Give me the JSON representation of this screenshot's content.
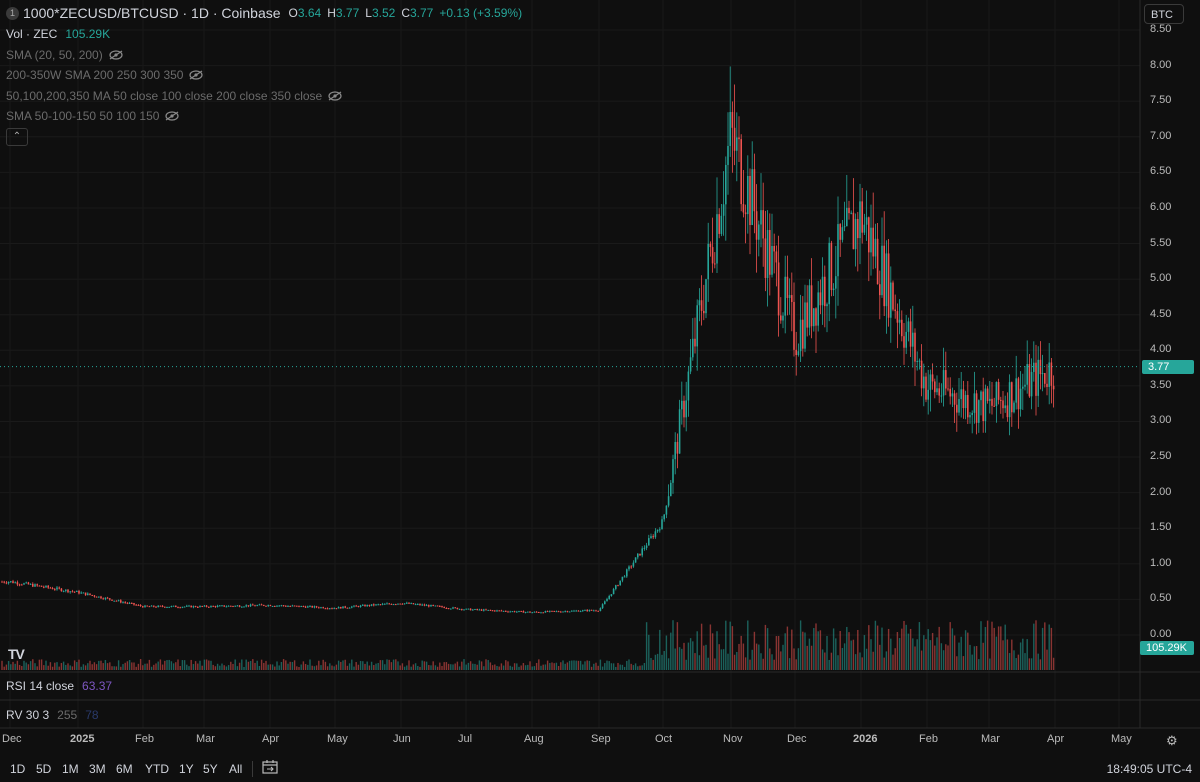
{
  "header": {
    "symbol_badge": "1",
    "symbol_title": "1000*ZECUSD/BTCUSD · 1D · Coinbase",
    "ohlc": {
      "o_label": "O",
      "o_value": "3.64",
      "h_label": "H",
      "h_value": "3.77",
      "l_label": "L",
      "l_value": "3.52",
      "c_label": "C",
      "c_value": "3.77",
      "change": "+0.13 (+3.59%)"
    },
    "currency": "BTC"
  },
  "indicators": {
    "volume_label": "Vol · ZEC",
    "volume_value": "105.29K",
    "items": [
      {
        "label": "SMA (20, 50, 200)"
      },
      {
        "label": "200-350W SMA 200 250 300 350"
      },
      {
        "label": "50,100,200,350 MA 50 close 100 close 200 close 350 close"
      },
      {
        "label": "SMA 50-100-150 50 100 150"
      }
    ],
    "rsi_label": "RSI 14 close",
    "rsi_value": "63.37",
    "rv_label": "RV 30 3",
    "rv_value1": "255",
    "rv_value2": "78"
  },
  "price_axis": {
    "labels": [
      "8.50",
      "8.00",
      "7.50",
      "7.00",
      "6.50",
      "6.00",
      "5.50",
      "5.00",
      "4.50",
      "4.00",
      "3.50",
      "3.00",
      "2.50",
      "2.00",
      "1.50",
      "1.00",
      "0.50",
      "0.00"
    ],
    "current_price": "3.77",
    "volume_tag": "105.29K"
  },
  "time_axis": {
    "labels": [
      "Dec",
      "2025",
      "Feb",
      "Mar",
      "Apr",
      "May",
      "Jun",
      "Jul",
      "Aug",
      "Sep",
      "Oct",
      "Nov",
      "Dec",
      "2026",
      "Feb",
      "Mar",
      "Apr",
      "May"
    ]
  },
  "toolbar": {
    "timeframes": [
      "1D",
      "5D",
      "1M",
      "3M",
      "6M",
      "YTD",
      "1Y",
      "5Y",
      "All"
    ],
    "clock": "18:49:05 UTC-4"
  },
  "colors": {
    "up": "#26a69a",
    "down": "#ef5350",
    "rsi": "#7e57c2",
    "background": "#0f0f0f"
  },
  "chart_data": {
    "type": "candlestick",
    "title": "1000*ZECUSD/BTCUSD · 1D · Coinbase",
    "y_range": [
      0,
      8.5
    ],
    "x": [
      "Dec",
      "2025",
      "Feb",
      "Mar",
      "Apr",
      "May",
      "Jun",
      "Jul",
      "Aug",
      "Sep",
      "Oct",
      "Nov",
      "Dec",
      "2026",
      "Feb",
      "Mar",
      "Apr"
    ],
    "series": [
      {
        "name": "price",
        "values": [
          0.75,
          0.6,
          0.4,
          0.4,
          0.42,
          0.38,
          0.45,
          0.36,
          0.32,
          0.35,
          1.6,
          7.0,
          4.2,
          5.9,
          3.5,
          3.2,
          3.77
        ]
      }
    ],
    "last": {
      "open": 3.64,
      "high": 3.77,
      "low": 3.52,
      "close": 3.77
    }
  }
}
